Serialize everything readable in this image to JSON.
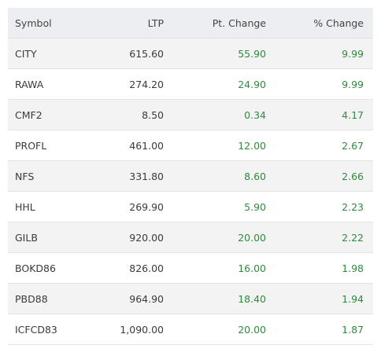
{
  "table": {
    "header": [
      "Symbol",
      "LTP",
      "Pt. Change",
      "% Change"
    ],
    "rows": [
      [
        "CITY",
        "615.60",
        "55.90",
        "9.99"
      ],
      [
        "RAWA",
        "274.20",
        "24.90",
        "9.99"
      ],
      [
        "CMF2",
        "8.50",
        "0.34",
        "4.17"
      ],
      [
        "PROFL",
        "461.00",
        "12.00",
        "2.67"
      ],
      [
        "NFS",
        "331.80",
        "8.60",
        "2.66"
      ],
      [
        "HHL",
        "269.90",
        "5.90",
        "2.23"
      ],
      [
        "GILB",
        "920.00",
        "20.00",
        "2.22"
      ],
      [
        "BOKD86",
        "826.00",
        "16.00",
        "1.98"
      ],
      [
        "PBD88",
        "964.90",
        "18.40",
        "1.94"
      ],
      [
        "ICFCD83",
        "1,090.00",
        "20.00",
        "1.87"
      ]
    ]
  }
}
